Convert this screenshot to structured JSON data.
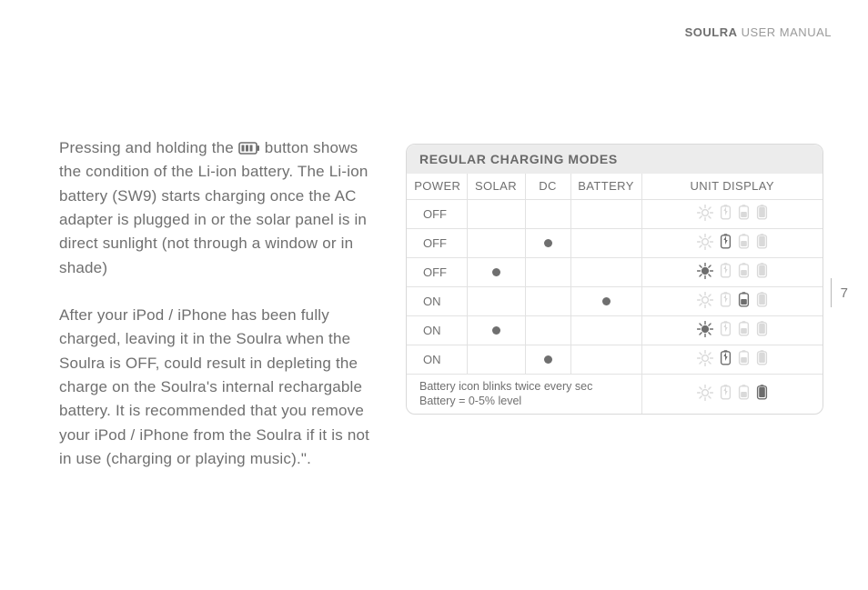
{
  "header": {
    "brand": "SOULRA",
    "rest": " USER MANUAL"
  },
  "page_number": "7",
  "left": {
    "para1_a": "Pressing and holding the ",
    "para1_b": " button shows the condition of the Li-ion battery. The Li-ion battery (SW9) starts charging once the AC adapter is plugged in or the solar panel is in direct sunlight (not through a window or in shade)",
    "para2": "After your iPod / iPhone has been fully charged, leaving it in the Soulra when the Soulra is OFF,  could result in depleting the charge on the Soulra's internal rechargable battery.  It is recommended that you remove your iPod / iPhone from the Soulra if it is not in use (charging or playing music).\"."
  },
  "table": {
    "title": "REGULAR CHARGING MODES",
    "columns": [
      "POWER",
      "SOLAR",
      "DC",
      "BATTERY",
      "UNIT DISPLAY"
    ],
    "rows": [
      {
        "power": "OFF",
        "solar": false,
        "dc": false,
        "battery": false,
        "display": {
          "sun": "dim",
          "batt_bolt": "dim",
          "batt_half": "dim",
          "batt_full": "dim"
        }
      },
      {
        "power": "OFF",
        "solar": false,
        "dc": true,
        "battery": false,
        "display": {
          "sun": "dim",
          "batt_bolt": "active",
          "batt_half": "dim",
          "batt_full": "dim"
        }
      },
      {
        "power": "OFF",
        "solar": true,
        "dc": false,
        "battery": false,
        "display": {
          "sun": "active",
          "batt_bolt": "dim",
          "batt_half": "dim",
          "batt_full": "dim"
        }
      },
      {
        "power": "ON",
        "solar": false,
        "dc": false,
        "battery": true,
        "display": {
          "sun": "dim",
          "batt_bolt": "dim",
          "batt_half": "active",
          "batt_full": "dim"
        }
      },
      {
        "power": "ON",
        "solar": true,
        "dc": false,
        "battery": false,
        "display": {
          "sun": "active",
          "batt_bolt": "dim",
          "batt_half": "dim",
          "batt_full": "dim"
        }
      },
      {
        "power": "ON",
        "solar": false,
        "dc": true,
        "battery": false,
        "display": {
          "sun": "dim",
          "batt_bolt": "active",
          "batt_half": "dim",
          "batt_full": "dim"
        }
      }
    ],
    "footer": {
      "note_l1": "Battery icon blinks twice every sec",
      "note_l2": "Battery = 0-5% level",
      "display": {
        "sun": "dim",
        "batt_bolt": "dim",
        "batt_half": "dim",
        "batt_full": "active"
      }
    }
  },
  "colors": {
    "text": "#6f6f6f",
    "text_light": "#9a9a9a",
    "icon_active": "#6d6d6d",
    "icon_dim": "#d9d9d9",
    "border": "#e2e2e2",
    "panel_bg": "#ececec"
  }
}
